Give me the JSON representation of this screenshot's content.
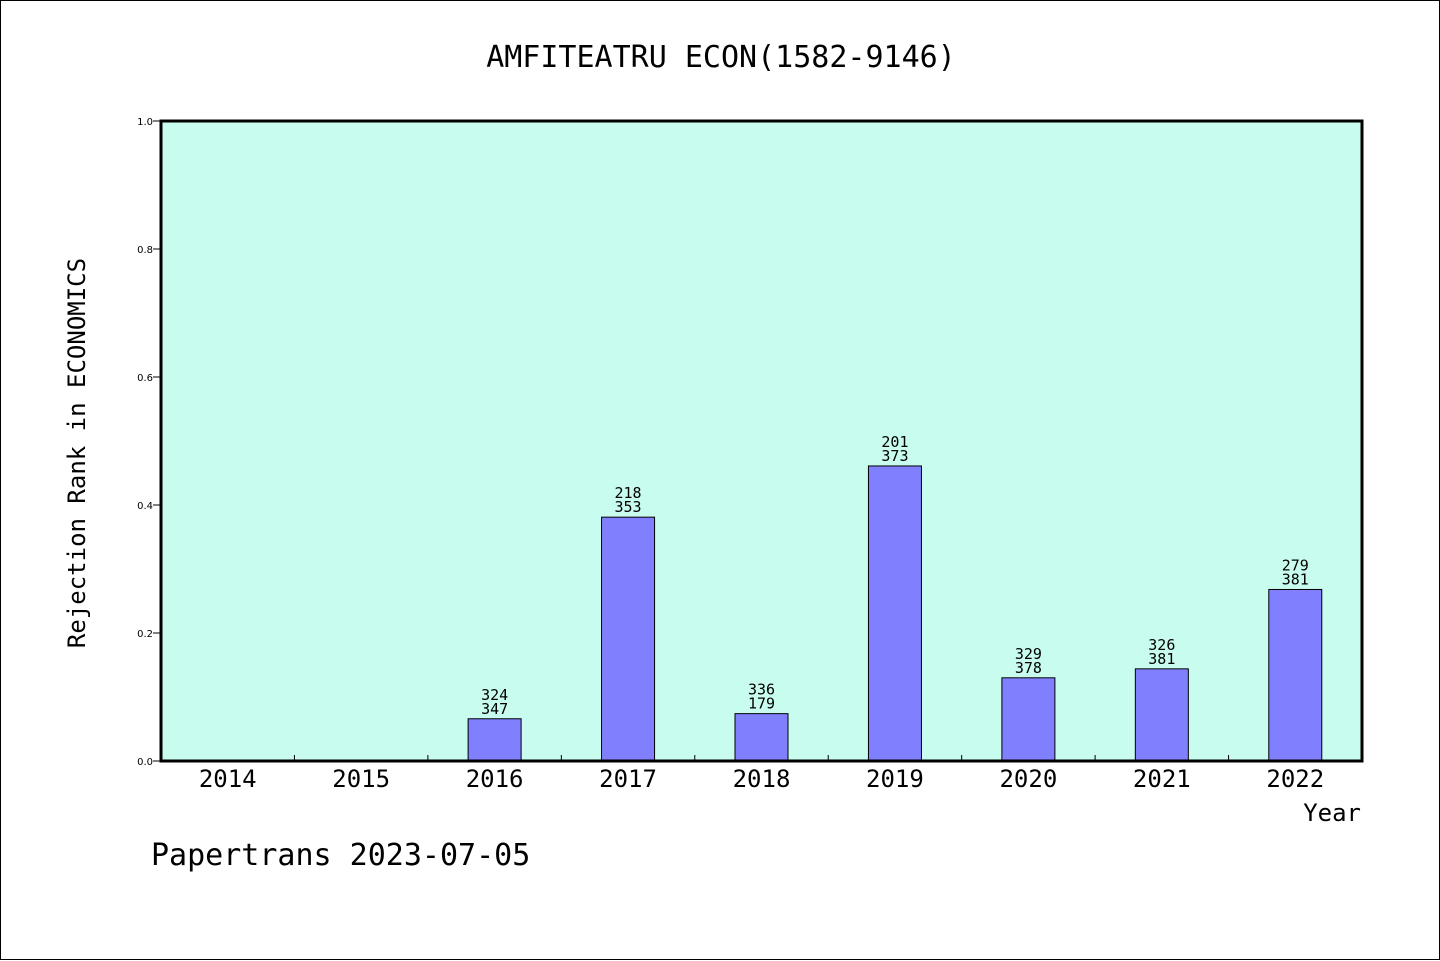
{
  "chart_data": {
    "type": "bar",
    "title": "AMFITEATRU ECON(1582-9146)",
    "xlabel": "Year",
    "ylabel": "Rejection Rank in ECONOMICS",
    "ylim": [
      0,
      1.0
    ],
    "yticks": [
      "0.0",
      "0.2",
      "0.4",
      "0.6",
      "0.8",
      "1.0"
    ],
    "categories": [
      "2014",
      "2015",
      "2016",
      "2017",
      "2018",
      "2019",
      "2020",
      "2021",
      "2022"
    ],
    "values": [
      0,
      0,
      0.066,
      0.381,
      0.074,
      0.461,
      0.13,
      0.144,
      0.268
    ],
    "bar_labels": [
      null,
      null,
      {
        "top": "324",
        "bottom": "347"
      },
      {
        "top": "218",
        "bottom": "353"
      },
      {
        "top": "336",
        "bottom": "179"
      },
      {
        "top": "201",
        "bottom": "373"
      },
      {
        "top": "329",
        "bottom": "378"
      },
      {
        "top": "326",
        "bottom": "381"
      },
      {
        "top": "279",
        "bottom": "381"
      }
    ],
    "grid": false,
    "colors": {
      "plot_background": "#c8fcee",
      "bar_fill": "#8080ff",
      "bar_stroke": "#000000"
    }
  },
  "footer": "Papertrans 2023-07-05"
}
